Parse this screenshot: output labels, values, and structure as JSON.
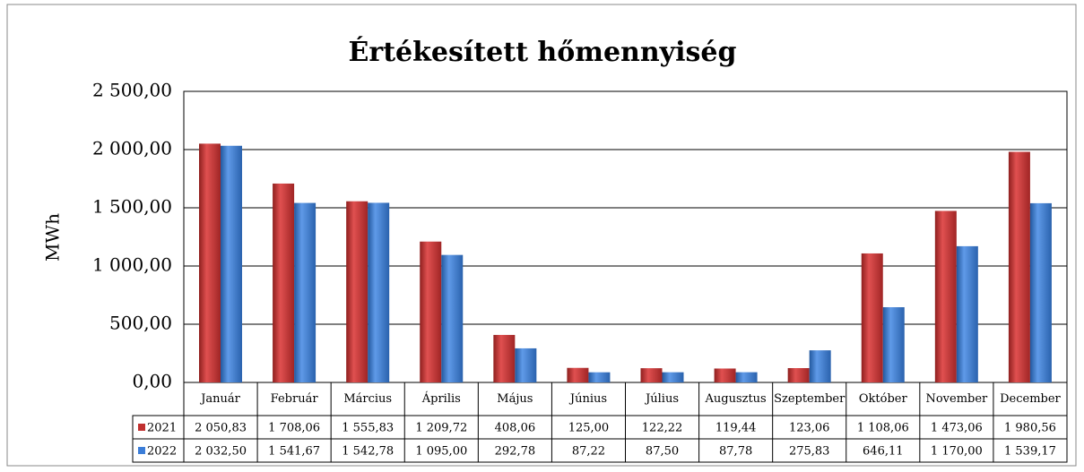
{
  "chart_data": {
    "type": "bar",
    "title": "Értékesített hőmennyiség",
    "y_label": "MWh",
    "categories": [
      "Január",
      "Február",
      "Március",
      "Április",
      "Május",
      "Június",
      "Július",
      "Augusztus",
      "Szeptember",
      "Október",
      "November",
      "December"
    ],
    "series": [
      {
        "name": "2021",
        "color": "#c0302f",
        "values": [
          2050.83,
          1708.06,
          1555.83,
          1209.72,
          408.06,
          125.0,
          122.22,
          119.44,
          123.06,
          1108.06,
          1473.06,
          1980.56
        ],
        "value_labels": [
          "2 050,83",
          "1 708,06",
          "1 555,83",
          "1 209,72",
          "408,06",
          "125,00",
          "122,22",
          "119,44",
          "123,06",
          "1 108,06",
          "1 473,06",
          "1 980,56"
        ]
      },
      {
        "name": "2022",
        "color": "#3b7dd8",
        "values": [
          2032.5,
          1541.67,
          1542.78,
          1095.0,
          292.78,
          87.22,
          87.5,
          87.78,
          275.83,
          646.11,
          1170.0,
          1539.17
        ],
        "value_labels": [
          "2 032,50",
          "1 541,67",
          "1 542,78",
          "1 095,00",
          "292,78",
          "87,22",
          "87,50",
          "87,78",
          "275,83",
          "646,11",
          "1 170,00",
          "1 539,17"
        ]
      }
    ],
    "ylim": [
      0,
      2500
    ],
    "yticks": [
      {
        "value": 0,
        "label": "0,00"
      },
      {
        "value": 500,
        "label": "500,00"
      },
      {
        "value": 1000,
        "label": "1 000,00"
      },
      {
        "value": 1500,
        "label": "1 500,00"
      },
      {
        "value": 2000,
        "label": "2 000,00"
      },
      {
        "value": 2500,
        "label": "2 500,00"
      }
    ],
    "grid": true
  }
}
